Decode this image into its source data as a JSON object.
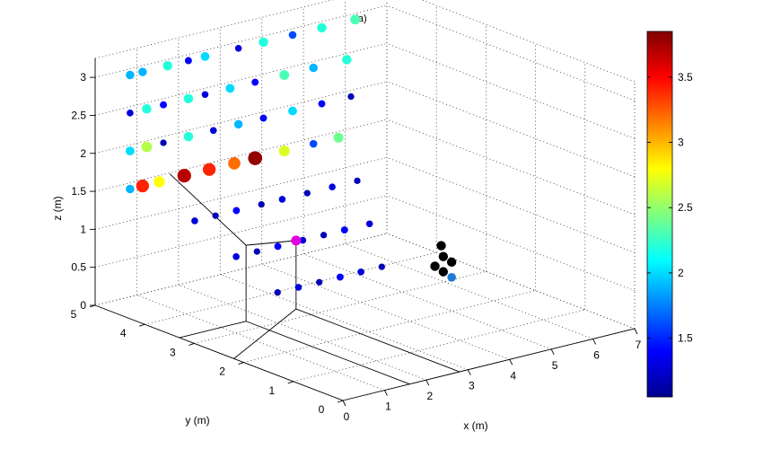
{
  "chart_data": {
    "type": "scatter",
    "title": "(a)",
    "xlabel": "x (m)",
    "ylabel": "y (m)",
    "zlabel": "z (m)",
    "xlim": [
      0,
      7
    ],
    "ylim": [
      0,
      5
    ],
    "zlim": [
      0,
      3.25
    ],
    "x_ticks": [
      "0",
      "1",
      "2",
      "3",
      "4",
      "5",
      "6",
      "7"
    ],
    "y_ticks": [
      "0",
      "1",
      "2",
      "3",
      "4",
      "5"
    ],
    "z_ticks": [
      "0",
      "0.5",
      "1",
      "1.5",
      "2",
      "2.5",
      "3"
    ],
    "grid": true,
    "colormap": "jet",
    "colorbar": {
      "min": 1.05,
      "max": 3.85,
      "ticks": [
        "1.5",
        "2",
        "2.5",
        "3",
        "3.5"
      ],
      "tick_values": [
        1.5,
        2.0,
        2.5,
        3.0,
        3.5
      ]
    },
    "rows": [
      {
        "y": 4.8,
        "z": 3.0,
        "points": [
          [
            0.6,
            1.9
          ],
          [
            0.9,
            1.9
          ],
          [
            1.5,
            2.2
          ],
          [
            2.0,
            1.4
          ],
          [
            2.4,
            2.0
          ],
          [
            3.2,
            1.3
          ],
          [
            3.8,
            2.2
          ],
          [
            4.5,
            1.6
          ],
          [
            5.2,
            2.2
          ],
          [
            6.0,
            2.3
          ]
        ]
      },
      {
        "y": 4.8,
        "z": 2.5,
        "points": [
          [
            0.6,
            1.3
          ],
          [
            1.0,
            2.2
          ],
          [
            1.4,
            1.4
          ],
          [
            2.0,
            2.2
          ],
          [
            2.4,
            1.3
          ],
          [
            3.0,
            2.0
          ],
          [
            3.6,
            1.4
          ],
          [
            4.3,
            2.3
          ],
          [
            5.0,
            1.9
          ],
          [
            5.8,
            2.2
          ]
        ]
      },
      {
        "y": 4.8,
        "z": 2.0,
        "points": [
          [
            0.6,
            2.0
          ],
          [
            1.0,
            2.6
          ],
          [
            1.4,
            1.2
          ],
          [
            2.0,
            2.2
          ],
          [
            2.6,
            1.3
          ],
          [
            3.2,
            1.9
          ],
          [
            3.8,
            1.4
          ],
          [
            4.5,
            2.0
          ],
          [
            5.2,
            1.4
          ],
          [
            5.9,
            1.2
          ]
        ]
      },
      {
        "y": 4.8,
        "z": 1.5,
        "points": [
          [
            0.6,
            1.9
          ],
          [
            0.9,
            3.4
          ],
          [
            1.3,
            2.8
          ],
          [
            1.9,
            3.7
          ],
          [
            2.5,
            3.4
          ],
          [
            3.1,
            3.2
          ],
          [
            3.6,
            3.8
          ],
          [
            4.3,
            2.7
          ],
          [
            5.0,
            1.6
          ],
          [
            5.6,
            2.4
          ]
        ]
      },
      {
        "y": 4.0,
        "z": 1.2,
        "points": [
          [
            1.2,
            1.3
          ],
          [
            1.7,
            1.2
          ],
          [
            2.2,
            1.4
          ],
          [
            2.8,
            1.2
          ],
          [
            3.3,
            1.3
          ],
          [
            3.9,
            1.2
          ],
          [
            4.5,
            1.3
          ],
          [
            5.1,
            1.2
          ]
        ]
      },
      {
        "y": 3.5,
        "z": 0.8,
        "points": [
          [
            1.6,
            1.3
          ],
          [
            2.1,
            1.2
          ],
          [
            2.6,
            1.4
          ],
          [
            3.2,
            1.3
          ],
          [
            3.7,
            1.2
          ],
          [
            4.2,
            1.4
          ],
          [
            4.8,
            1.3
          ]
        ]
      },
      {
        "y": 3.0,
        "z": 0.4,
        "points": [
          [
            2.0,
            1.2
          ],
          [
            2.5,
            1.3
          ],
          [
            3.0,
            1.2
          ],
          [
            3.5,
            1.4
          ],
          [
            4.0,
            1.3
          ],
          [
            4.5,
            1.2
          ]
        ]
      }
    ],
    "black_cluster": [
      [
        5.3,
        0.4
      ],
      [
        5.5,
        0.5
      ],
      [
        5.5,
        0.3
      ],
      [
        5.7,
        0.4
      ],
      [
        5.45,
        0.65
      ]
    ],
    "special_point": {
      "x": 2.8,
      "y": 3.3,
      "z": 0.9,
      "value": 2.0
    },
    "projection_box": {
      "x": [
        1.6,
        2.8
      ],
      "y": [
        2.2,
        3.3
      ],
      "z": 1.0
    }
  }
}
